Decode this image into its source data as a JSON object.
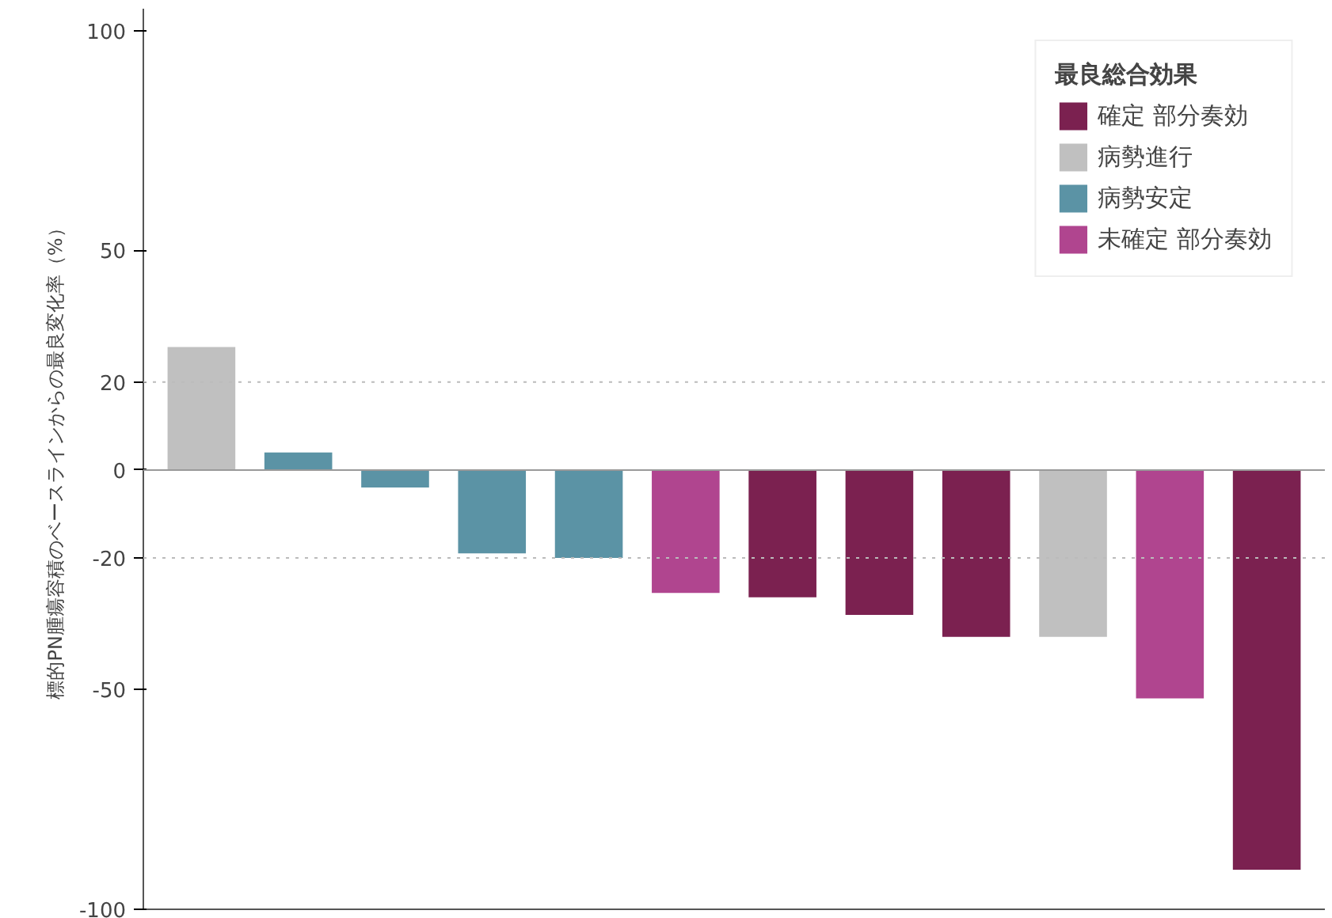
{
  "chart_data": {
    "type": "bar",
    "ylabel": "標的PN腫瘍容積のベースラインからの最良変化率（%）",
    "legend_title": "最良総合効果",
    "categories": [
      null,
      null,
      null,
      null,
      null,
      null,
      null,
      null,
      null,
      null,
      null,
      null
    ],
    "series": [
      {
        "name": "確定 部分奏効",
        "color": "#7b2150",
        "values": [
          null,
          null,
          null,
          null,
          null,
          null,
          -29,
          -33,
          -38,
          null,
          null,
          -91
        ]
      },
      {
        "name": "病勢進行",
        "color": "#c0c0c0",
        "values": [
          28,
          null,
          null,
          null,
          null,
          null,
          null,
          null,
          null,
          -38,
          null,
          null
        ]
      },
      {
        "name": "病勢安定",
        "color": "#5b93a5",
        "values": [
          null,
          4,
          -4,
          -19,
          -20,
          null,
          null,
          null,
          null,
          null,
          null,
          null
        ]
      },
      {
        "name": "未確定 部分奏効",
        "color": "#b0458f",
        "values": [
          null,
          null,
          null,
          null,
          null,
          -28,
          null,
          null,
          null,
          null,
          -52,
          null
        ]
      }
    ],
    "ylim": [
      -100,
      105
    ],
    "yticks": [
      -100,
      -50,
      -20,
      0,
      20,
      50,
      100
    ],
    "ref_lines": [
      {
        "axis": "y",
        "value": 0,
        "color": "#999999",
        "line_style": "solid"
      },
      {
        "axis": "y",
        "value": 20,
        "color": "#bbbbbb",
        "line_style": "dotted"
      },
      {
        "axis": "y",
        "value": -20,
        "color": "#bbbbbb",
        "line_style": "dotted"
      }
    ],
    "grid": false,
    "legend": "top right",
    "tick_labels": "y"
  }
}
